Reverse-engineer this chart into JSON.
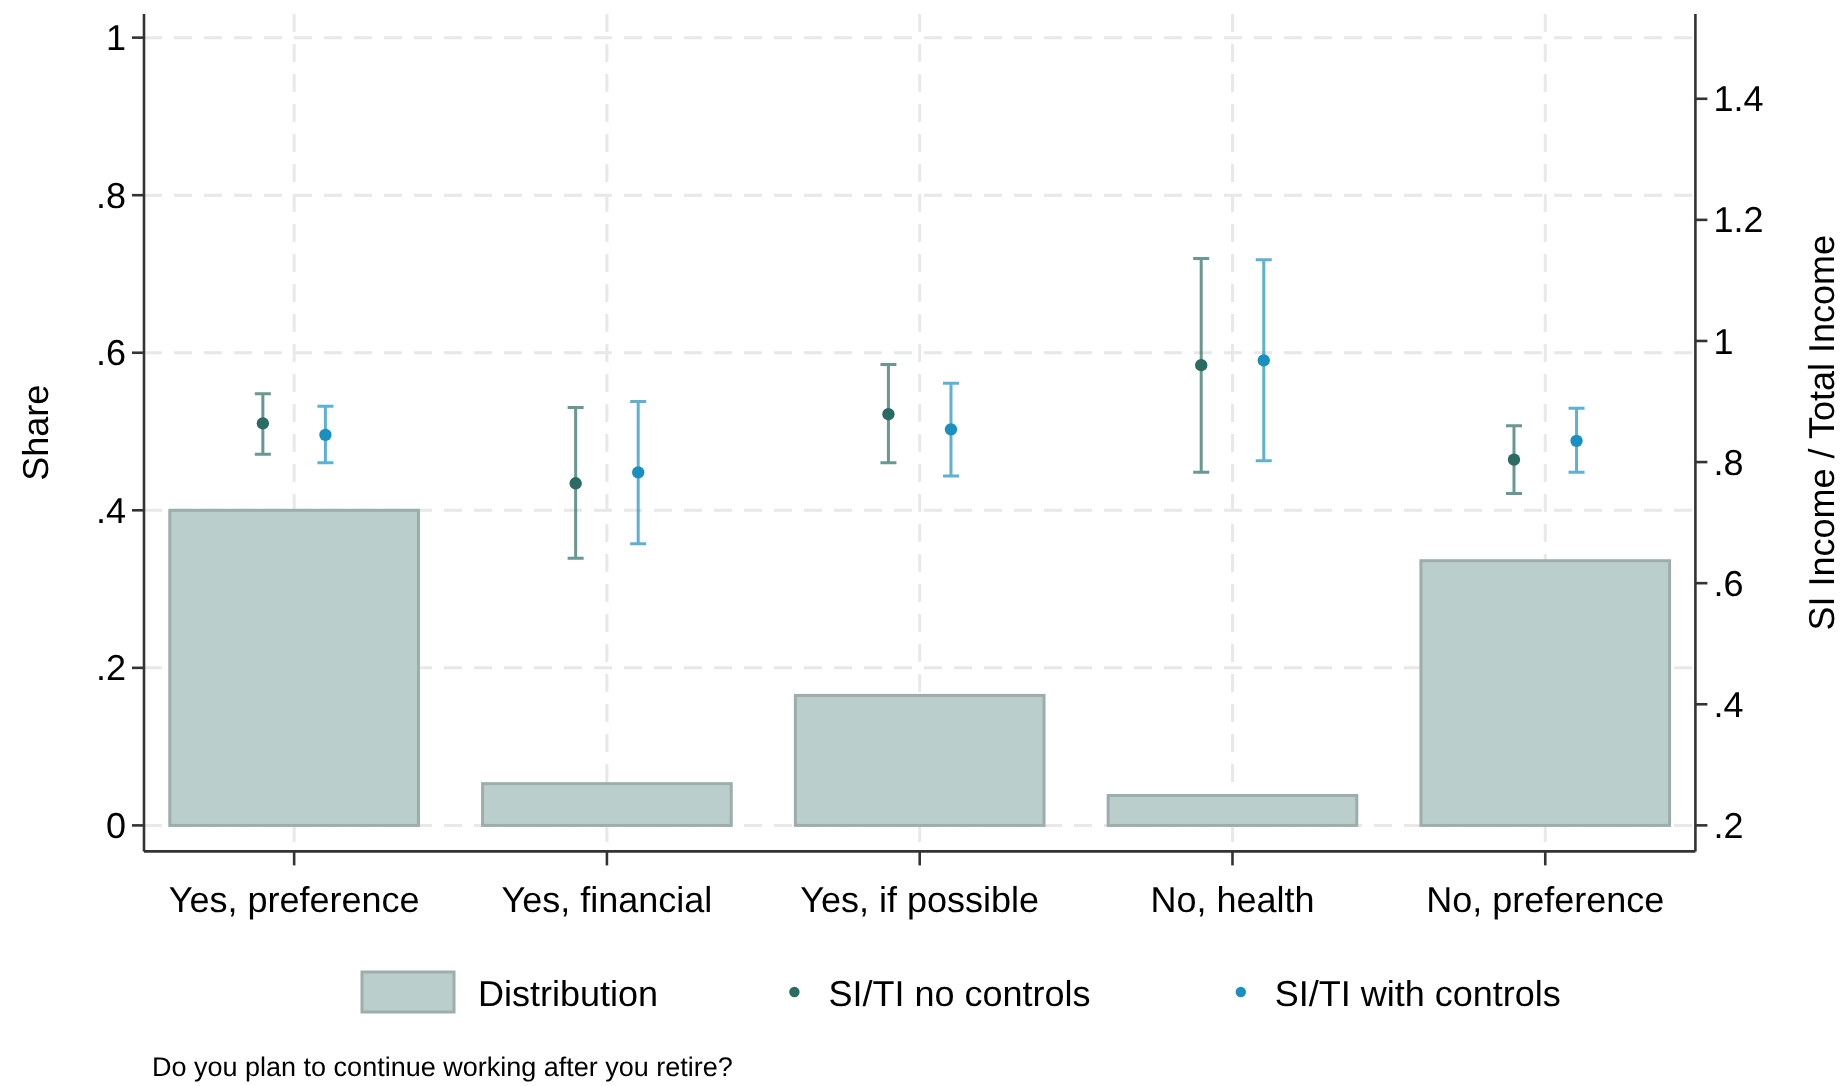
{
  "chart_data": {
    "type": "bar",
    "ylabel": "Share",
    "y2label": "SI Income / Total Income",
    "categories": [
      "Yes, preference",
      "Yes, financial",
      "Yes, if possible",
      "No, health",
      "No, preference"
    ],
    "series": [
      {
        "name": "Distribution",
        "color": "#bacfcc",
        "values": [
          0.4,
          0.053,
          0.165,
          0.038,
          0.336
        ]
      },
      {
        "name": "SI/TI no controls",
        "type": "scatter",
        "axis": "y2",
        "color": "#2a6b62",
        "x": [
          "Yes, preference",
          "Yes, financial",
          "Yes, if possible",
          "No, health",
          "No, preference"
        ],
        "values": [
          0.864,
          0.765,
          0.879,
          0.96,
          0.804
        ],
        "errors": [
          [
            0.813,
            0.913
          ],
          [
            0.641,
            0.89
          ],
          [
            0.799,
            0.961
          ],
          [
            0.783,
            1.136
          ],
          [
            0.748,
            0.86
          ]
        ]
      },
      {
        "name": "SI/TI with controls",
        "type": "scatter",
        "axis": "y2",
        "color": "#1a90c0",
        "x": [
          "Yes, preference",
          "Yes, financial",
          "Yes, if possible",
          "No, health",
          "No, preference"
        ],
        "values": [
          0.845,
          0.783,
          0.854,
          0.968,
          0.835
        ],
        "errors": [
          [
            0.799,
            0.892
          ],
          [
            0.665,
            0.9
          ],
          [
            0.777,
            0.93
          ],
          [
            0.802,
            1.134
          ],
          [
            0.783,
            0.889
          ]
        ]
      }
    ],
    "ylim": [
      -0.033,
      1.03
    ],
    "yticks": [
      0,
      {
        "value": 0.2,
        "label": ".2"
      },
      {
        "value": 0.4,
        "label": ".4"
      },
      {
        "value": 0.6,
        "label": ".6"
      },
      {
        "value": 0.8,
        "label": ".8"
      },
      1
    ],
    "y2lim": [
      0.157,
      1.54
    ],
    "y2ticks": [
      {
        "value": 0.2,
        "label": ".2"
      },
      {
        "value": 0.4,
        "label": ".4"
      },
      {
        "value": 0.6,
        "label": ".6"
      },
      {
        "value": 0.8,
        "label": ".8"
      },
      1,
      1.2,
      1.4
    ],
    "grid": true,
    "legend": "bottom",
    "marker": "circle",
    "annotations": [
      "Do you plan to continue working after you retire?"
    ]
  }
}
